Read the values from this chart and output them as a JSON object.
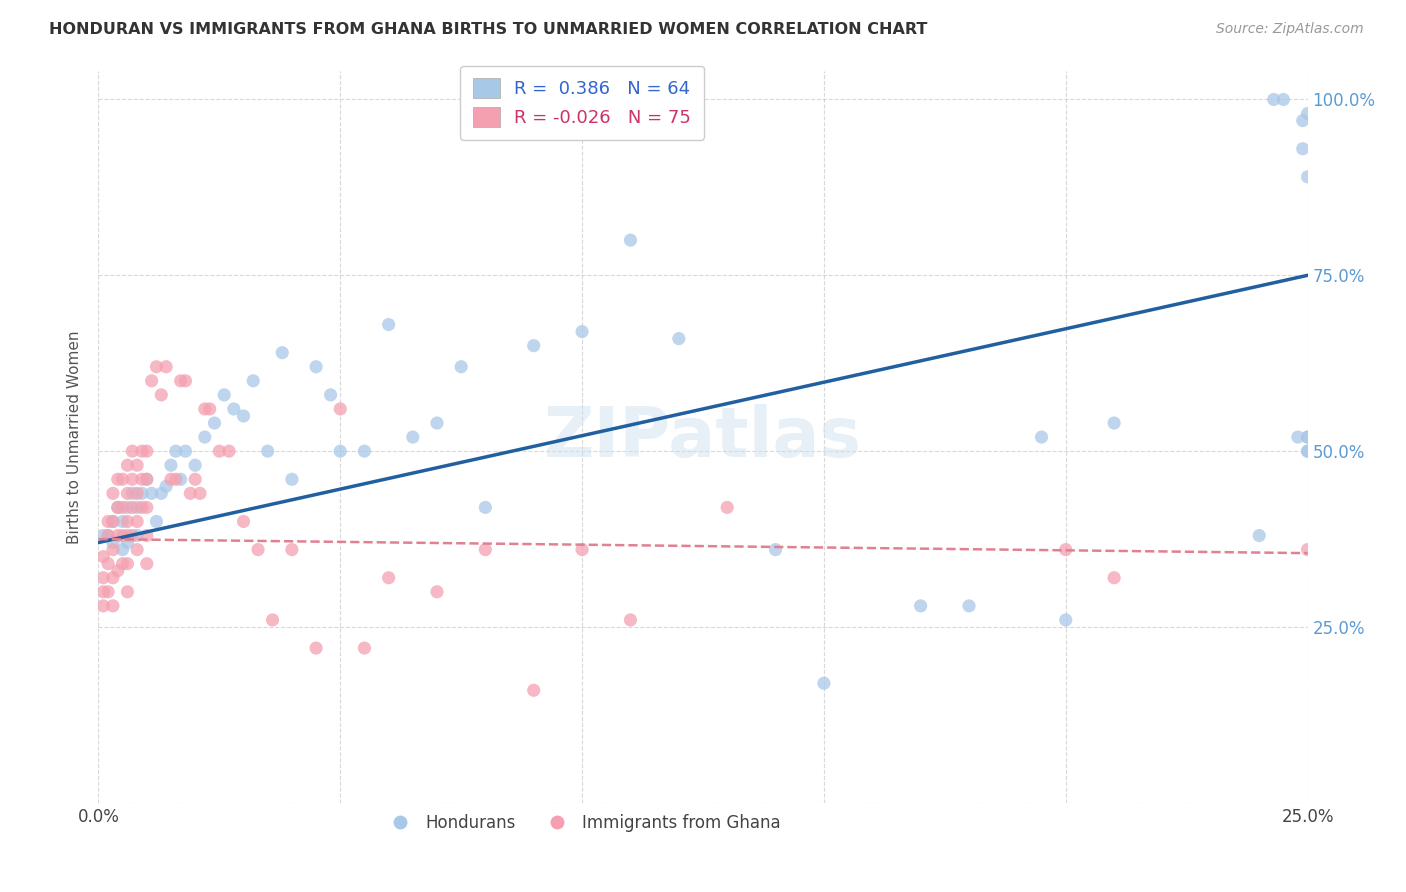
{
  "title": "HONDURAN VS IMMIGRANTS FROM GHANA BIRTHS TO UNMARRIED WOMEN CORRELATION CHART",
  "source": "Source: ZipAtlas.com",
  "ylabel": "Births to Unmarried Women",
  "xlim": [
    0.0,
    0.25
  ],
  "ylim": [
    0.0,
    1.04
  ],
  "ytick_vals": [
    0.0,
    0.25,
    0.5,
    0.75,
    1.0
  ],
  "xtick_vals": [
    0.0,
    0.05,
    0.1,
    0.15,
    0.2,
    0.25
  ],
  "legend_blue_label": "R =  0.386   N = 64",
  "legend_pink_label": "R = -0.026   N = 75",
  "legend_group1": "Hondurans",
  "legend_group2": "Immigrants from Ghana",
  "blue_color": "#a8c8e8",
  "pink_color": "#f4a0b0",
  "blue_line_color": "#2060a0",
  "pink_line_color": "#e08090",
  "watermark": "ZIPatlas",
  "blue_line_x0": 0.0,
  "blue_line_y0": 0.37,
  "blue_line_x1": 0.25,
  "blue_line_y1": 0.75,
  "pink_line_x0": 0.0,
  "pink_line_y0": 0.375,
  "pink_line_x1": 0.25,
  "pink_line_y1": 0.355,
  "blue_scatter_x": [
    0.001,
    0.002,
    0.003,
    0.003,
    0.004,
    0.005,
    0.005,
    0.006,
    0.006,
    0.007,
    0.008,
    0.008,
    0.009,
    0.01,
    0.011,
    0.012,
    0.013,
    0.014,
    0.015,
    0.016,
    0.017,
    0.018,
    0.02,
    0.022,
    0.024,
    0.026,
    0.028,
    0.03,
    0.032,
    0.035,
    0.038,
    0.04,
    0.045,
    0.048,
    0.05,
    0.055,
    0.06,
    0.065,
    0.07,
    0.075,
    0.08,
    0.09,
    0.1,
    0.11,
    0.12,
    0.14,
    0.15,
    0.17,
    0.18,
    0.195,
    0.2,
    0.21,
    0.24,
    0.243,
    0.245,
    0.248,
    0.249,
    0.249,
    0.25,
    0.25,
    0.25,
    0.25,
    0.25,
    0.25
  ],
  "blue_scatter_y": [
    0.38,
    0.38,
    0.4,
    0.37,
    0.42,
    0.4,
    0.36,
    0.42,
    0.37,
    0.44,
    0.42,
    0.38,
    0.44,
    0.46,
    0.44,
    0.4,
    0.44,
    0.45,
    0.48,
    0.5,
    0.46,
    0.5,
    0.48,
    0.52,
    0.54,
    0.58,
    0.56,
    0.55,
    0.6,
    0.5,
    0.64,
    0.46,
    0.62,
    0.58,
    0.5,
    0.5,
    0.68,
    0.52,
    0.54,
    0.62,
    0.42,
    0.65,
    0.67,
    0.8,
    0.66,
    0.36,
    0.17,
    0.28,
    0.28,
    0.52,
    0.26,
    0.54,
    0.38,
    1.0,
    1.0,
    0.52,
    0.97,
    0.93,
    0.98,
    0.89,
    0.52,
    0.52,
    0.5,
    0.5
  ],
  "pink_scatter_x": [
    0.001,
    0.001,
    0.001,
    0.001,
    0.002,
    0.002,
    0.002,
    0.002,
    0.003,
    0.003,
    0.003,
    0.003,
    0.003,
    0.004,
    0.004,
    0.004,
    0.004,
    0.005,
    0.005,
    0.005,
    0.005,
    0.006,
    0.006,
    0.006,
    0.006,
    0.006,
    0.006,
    0.007,
    0.007,
    0.007,
    0.007,
    0.008,
    0.008,
    0.008,
    0.008,
    0.009,
    0.009,
    0.009,
    0.01,
    0.01,
    0.01,
    0.01,
    0.01,
    0.011,
    0.012,
    0.013,
    0.014,
    0.015,
    0.016,
    0.017,
    0.018,
    0.019,
    0.02,
    0.021,
    0.022,
    0.023,
    0.025,
    0.027,
    0.03,
    0.033,
    0.036,
    0.04,
    0.045,
    0.05,
    0.055,
    0.06,
    0.07,
    0.08,
    0.09,
    0.1,
    0.11,
    0.13,
    0.2,
    0.21,
    0.25
  ],
  "pink_scatter_y": [
    0.35,
    0.32,
    0.3,
    0.28,
    0.4,
    0.38,
    0.34,
    0.3,
    0.44,
    0.4,
    0.36,
    0.32,
    0.28,
    0.46,
    0.42,
    0.38,
    0.33,
    0.46,
    0.42,
    0.38,
    0.34,
    0.48,
    0.44,
    0.4,
    0.38,
    0.34,
    0.3,
    0.5,
    0.46,
    0.42,
    0.38,
    0.48,
    0.44,
    0.4,
    0.36,
    0.5,
    0.46,
    0.42,
    0.5,
    0.46,
    0.42,
    0.38,
    0.34,
    0.6,
    0.62,
    0.58,
    0.62,
    0.46,
    0.46,
    0.6,
    0.6,
    0.44,
    0.46,
    0.44,
    0.56,
    0.56,
    0.5,
    0.5,
    0.4,
    0.36,
    0.26,
    0.36,
    0.22,
    0.56,
    0.22,
    0.32,
    0.3,
    0.36,
    0.16,
    0.36,
    0.26,
    0.42,
    0.36,
    0.32,
    0.36
  ]
}
